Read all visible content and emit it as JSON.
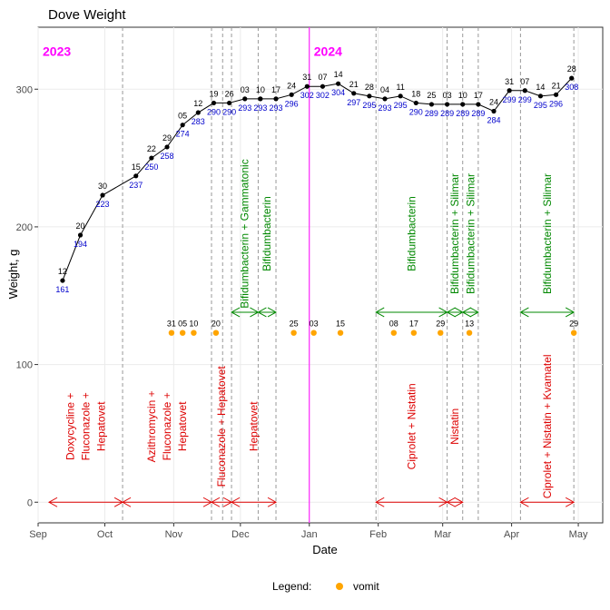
{
  "chart_data": {
    "type": "line",
    "title": "Dove Weight",
    "xlabel": "Date",
    "ylabel": "Weight, g",
    "xlim": [
      "2023-09-01",
      "2024-05-12"
    ],
    "ylim": [
      -15,
      345
    ],
    "grid": true,
    "x_ticks": [
      {
        "date": "2023-09-01",
        "label": "Sep"
      },
      {
        "date": "2023-10-01",
        "label": "Oct"
      },
      {
        "date": "2023-11-01",
        "label": "Nov"
      },
      {
        "date": "2023-12-01",
        "label": "Dec"
      },
      {
        "date": "2024-01-01",
        "label": "Jan"
      },
      {
        "date": "2024-02-01",
        "label": "Feb"
      },
      {
        "date": "2024-03-01",
        "label": "Mar"
      },
      {
        "date": "2024-04-01",
        "label": "Apr"
      },
      {
        "date": "2024-05-01",
        "label": "May"
      }
    ],
    "y_ticks": [
      0,
      100,
      200,
      300
    ],
    "year_labels": [
      {
        "text": "2023",
        "date": "2023-09-01",
        "color": "#ff00ff"
      },
      {
        "text": "2024",
        "date": "2024-01-01",
        "color": "#ff00ff"
      }
    ],
    "year_divider": "2024-01-01",
    "weight_series": {
      "name": "weight",
      "color": "#000000",
      "label_color": "#0000cc",
      "points": [
        {
          "date": "2023-09-12",
          "day": "12",
          "weight": 161
        },
        {
          "date": "2023-09-20",
          "day": "20",
          "weight": 194
        },
        {
          "date": "2023-09-30",
          "day": "30",
          "weight": 223
        },
        {
          "date": "2023-10-15",
          "day": "15",
          "weight": 237
        },
        {
          "date": "2023-10-22",
          "day": "22",
          "weight": 250
        },
        {
          "date": "2023-10-29",
          "day": "29",
          "weight": 258
        },
        {
          "date": "2023-11-05",
          "day": "05",
          "weight": 274
        },
        {
          "date": "2023-11-12",
          "day": "12",
          "weight": 283
        },
        {
          "date": "2023-11-19",
          "day": "19",
          "weight": 290
        },
        {
          "date": "2023-11-26",
          "day": "26",
          "weight": 290
        },
        {
          "date": "2023-12-03",
          "day": "03",
          "weight": 293
        },
        {
          "date": "2023-12-10",
          "day": "10",
          "weight": 293
        },
        {
          "date": "2023-12-17",
          "day": "17",
          "weight": 293
        },
        {
          "date": "2023-12-24",
          "day": "24",
          "weight": 296
        },
        {
          "date": "2023-12-31",
          "day": "31",
          "weight": 302
        },
        {
          "date": "2024-01-07",
          "day": "07",
          "weight": 302
        },
        {
          "date": "2024-01-14",
          "day": "14",
          "weight": 304
        },
        {
          "date": "2024-01-21",
          "day": "21",
          "weight": 297
        },
        {
          "date": "2024-01-28",
          "day": "28",
          "weight": 295
        },
        {
          "date": "2024-02-04",
          "day": "04",
          "weight": 293
        },
        {
          "date": "2024-02-11",
          "day": "11",
          "weight": 295
        },
        {
          "date": "2024-02-18",
          "day": "18",
          "weight": 290
        },
        {
          "date": "2024-02-25",
          "day": "25",
          "weight": 289
        },
        {
          "date": "2024-03-03",
          "day": "03",
          "weight": 289
        },
        {
          "date": "2024-03-10",
          "day": "10",
          "weight": 289
        },
        {
          "date": "2024-03-17",
          "day": "17",
          "weight": 289
        },
        {
          "date": "2024-03-24",
          "day": "24",
          "weight": 284
        },
        {
          "date": "2024-03-31",
          "day": "31",
          "weight": 299
        },
        {
          "date": "2024-04-07",
          "day": "07",
          "weight": 299
        },
        {
          "date": "2024-04-14",
          "day": "14",
          "weight": 295
        },
        {
          "date": "2024-04-21",
          "day": "21",
          "weight": 296
        },
        {
          "date": "2024-04-28",
          "day": "28",
          "weight": 308
        }
      ]
    },
    "vomit_series": {
      "name": "vomit",
      "color": "#ffa500",
      "y": 123,
      "points": [
        {
          "date": "2023-10-31",
          "day": "31"
        },
        {
          "date": "2023-11-05",
          "day": "05"
        },
        {
          "date": "2023-11-10",
          "day": "10"
        },
        {
          "date": "2023-11-20",
          "day": "20"
        },
        {
          "date": "2023-12-25",
          "day": "25"
        },
        {
          "date": "2024-01-03",
          "day": "03"
        },
        {
          "date": "2024-01-15",
          "day": "15"
        },
        {
          "date": "2024-02-08",
          "day": "08"
        },
        {
          "date": "2024-02-17",
          "day": "17"
        },
        {
          "date": "2024-02-29",
          "day": "29"
        },
        {
          "date": "2024-03-13",
          "day": "13"
        },
        {
          "date": "2024-04-29",
          "day": "29"
        }
      ]
    },
    "treatment_boundaries": [
      "2023-10-09",
      "2023-11-18",
      "2023-11-23",
      "2023-11-27",
      "2023-12-09",
      "2023-12-17",
      "2024-01-31",
      "2024-03-03",
      "2024-03-10",
      "2024-03-17",
      "2024-04-05",
      "2024-04-29"
    ],
    "treatments": [
      {
        "group": "red",
        "start": "2023-09-01",
        "end": "2023-10-09",
        "arrow_y": 0,
        "text_y": 55,
        "lines": [
          "Doxycycline +",
          "Fluconazole +",
          "Hepatovet"
        ]
      },
      {
        "group": "red",
        "start": "2023-10-09",
        "end": "2023-11-18",
        "arrow_y": 0,
        "text_y": 55,
        "lines": [
          "Azithromycin +",
          "Fluconazole +",
          "Hepatovet"
        ]
      },
      {
        "group": "red",
        "start": "2023-11-18",
        "end": "2023-11-27",
        "arrow_y": 0,
        "text_y": 55,
        "lines": [
          "Fluconazole + Hepatovet"
        ]
      },
      {
        "group": "red",
        "start": "2023-11-27",
        "end": "2023-12-17",
        "arrow_y": 0,
        "text_y": 55,
        "lines": [
          "Hepatovet"
        ]
      },
      {
        "group": "red",
        "start": "2024-01-31",
        "end": "2024-03-03",
        "arrow_y": 0,
        "text_y": 55,
        "lines": [
          "Ciprolet + Nistatin"
        ]
      },
      {
        "group": "red",
        "start": "2024-03-03",
        "end": "2024-03-10",
        "arrow_y": 0,
        "text_y": 55,
        "lines": [
          "Nistatin"
        ]
      },
      {
        "group": "red",
        "start": "2024-04-05",
        "end": "2024-04-29",
        "arrow_y": 0,
        "text_y": 55,
        "lines": [
          "Ciprolet + Nistatin + Kvamatel"
        ]
      },
      {
        "group": "green",
        "start": "2023-11-27",
        "end": "2023-12-09",
        "arrow_y": 138,
        "text_y": 195,
        "lines": [
          "Bifidumbacterin + Gammatonic"
        ]
      },
      {
        "group": "green",
        "start": "2023-12-09",
        "end": "2023-12-17",
        "arrow_y": 138,
        "text_y": 195,
        "lines": [
          "Bifidumbacterin"
        ]
      },
      {
        "group": "green",
        "start": "2024-01-31",
        "end": "2024-03-03",
        "arrow_y": 138,
        "text_y": 195,
        "lines": [
          "Bifidumbacterin"
        ]
      },
      {
        "group": "green",
        "start": "2024-03-03",
        "end": "2024-03-10",
        "arrow_y": 138,
        "text_y": 195,
        "lines": [
          "Bifidumbacterin + Silimar"
        ]
      },
      {
        "group": "green",
        "start": "2024-03-10",
        "end": "2024-03-17",
        "arrow_y": 138,
        "text_y": 195,
        "lines": [
          "Bifidumbacterin + Silimar"
        ]
      },
      {
        "group": "green",
        "start": "2024-04-05",
        "end": "2024-04-29",
        "arrow_y": 138,
        "text_y": 195,
        "lines": [
          "Bifidumbacterin + Silimar"
        ]
      }
    ],
    "colors": {
      "red": "#dd0000",
      "green": "#008800",
      "grid": "#ebebeb",
      "divider": "#999999"
    },
    "legend": {
      "title": "Legend:",
      "entries": [
        {
          "label": "vomit",
          "color": "#ffa500"
        }
      ],
      "position": "bottom"
    }
  }
}
